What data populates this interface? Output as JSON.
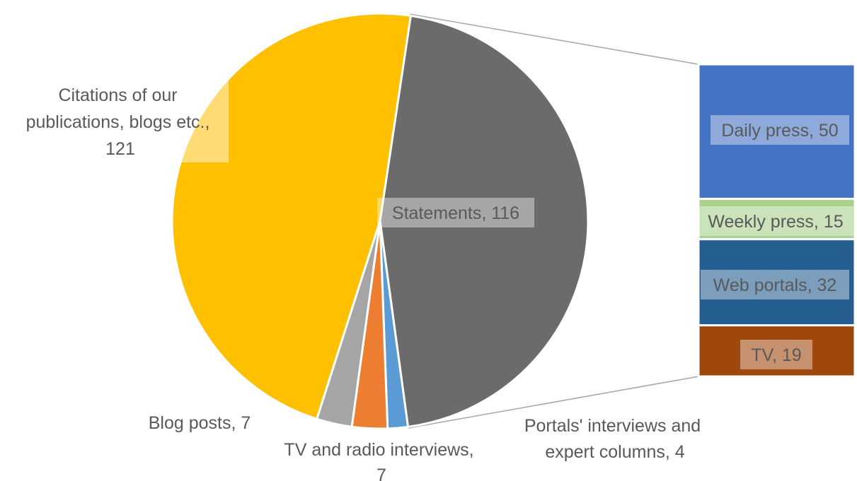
{
  "chart_data": {
    "type": "bar-of-pie",
    "pie": [
      {
        "label": "Citations of our publications, blogs etc.",
        "value": 121,
        "color": "#FFC000"
      },
      {
        "label": "Statements",
        "value": 116,
        "color": "#6B6B6B"
      },
      {
        "label": "Portals' interviews and expert columns",
        "value": 4,
        "color": "#5B9BD5"
      },
      {
        "label": "TV and radio interviews",
        "value": 7,
        "color": "#ED7D31"
      },
      {
        "label": "Blog posts",
        "value": 7,
        "color": "#A5A5A5"
      }
    ],
    "breakdown_of": "Statements",
    "bar": [
      {
        "label": "Daily press",
        "value": 50,
        "color": "#4472C4"
      },
      {
        "label": "Weekly press",
        "value": 15,
        "color": "#A9D18E"
      },
      {
        "label": "Web portals",
        "value": 32,
        "color": "#255E91"
      },
      {
        "label": "TV",
        "value": 19,
        "color": "#9E480E"
      }
    ]
  },
  "labels": {
    "citations": [
      "Citations of our",
      "publications, blogs etc.,",
      "121"
    ],
    "statements": "Statements, 116",
    "blog_posts": "Blog posts, 7",
    "tv_radio": [
      "TV and radio interviews,",
      "7"
    ],
    "portals": [
      "Portals' interviews and",
      "expert columns, 4"
    ],
    "daily_press": "Daily press, 50",
    "weekly_press": "Weekly press, 15",
    "web_portals": "Web portals, 32",
    "tv": "TV, 19"
  }
}
